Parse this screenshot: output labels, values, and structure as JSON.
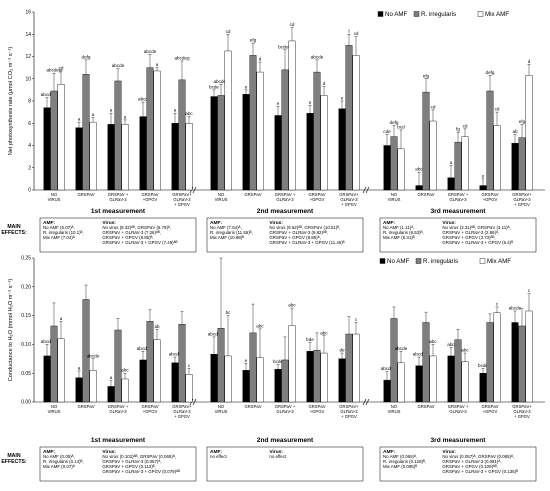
{
  "colors": {
    "no_amf": "#000000",
    "r_irregularis": "#7f7f7f",
    "mix_amf": "#ffffff"
  },
  "legend": [
    "No AMF",
    "R. irregularis",
    "Mix AMF"
  ],
  "categories": [
    "NO\nVIRUS",
    "GRSPaV",
    "GRSPaV +\nGLRaV-3",
    "GRSPaV\n+GPGV",
    "GRSPaV+\nGLRaV-3\n+ GPGV"
  ],
  "measurements": [
    "1st measurement",
    "2nd measurement",
    "3rd measurement"
  ],
  "main_effects_label": "MAIN\nEFFECTS:",
  "chart_data": [
    {
      "type": "bar",
      "ylabel": "Net photosynthesis rate (μmol CO₂ m⁻² s⁻¹)",
      "ylim": [
        0,
        16
      ],
      "yticks": [
        0,
        2,
        4,
        6,
        8,
        10,
        12,
        14,
        16
      ],
      "series": [
        {
          "name": "No AMF",
          "values": [
            [
              7.4,
              5.6,
              5.9,
              6.6,
              6.0
            ],
            [
              8.4,
              8.6,
              6.7,
              6.9,
              7.3
            ],
            [
              4.0,
              0.4,
              1.1,
              0.4,
              4.2
            ]
          ]
        },
        {
          "name": "R. irregularis",
          "values": [
            [
              8.9,
              10.4,
              9.8,
              11.0,
              9.9
            ],
            [
              8.5,
              12.1,
              10.8,
              10.6,
              13.0
            ],
            [
              4.8,
              8.8,
              4.3,
              8.9,
              4.7
            ]
          ]
        },
        {
          "name": "Mix AMF",
          "values": [
            [
              9.5,
              6.1,
              5.9,
              10.7,
              6.0
            ],
            [
              12.5,
              10.6,
              13.4,
              8.5,
              12.1
            ],
            [
              3.7,
              6.2,
              4.8,
              5.8,
              10.3
            ]
          ]
        }
      ],
      "errors": [
        [
          [
            0.9,
            0.5,
            1.0,
            1.3,
            0.9
          ],
          [
            0.6,
            0.4,
            0.8,
            0.7,
            0.7
          ],
          [
            1.0,
            1.2,
            1.1,
            0.6,
            0.8
          ]
        ],
        [
          [
            1.6,
            1.3,
            1.1,
            1.2,
            1.7
          ],
          [
            1.0,
            1.1,
            1.8,
            1.1,
            1.0
          ],
          [
            1.0,
            1.2,
            0.9,
            1.4,
            1.2
          ]
        ],
        [
          [
            1.2,
            0.4,
            0.4,
            0.3,
            0.6
          ],
          [
            1.5,
            0.9,
            1.2,
            0.8,
            1.7
          ],
          [
            1.7,
            1.0,
            0.7,
            1.2,
            1.0
          ]
        ]
      ],
      "labels": [
        [
          [
            "abcde",
            "a",
            "a",
            "abcd",
            "a"
          ],
          [
            "bcde",
            "e",
            "e",
            "e",
            "e"
          ],
          [
            "cde",
            "abc",
            "a",
            "e",
            "ab"
          ]
        ],
        [
          [
            "abcdeg",
            "defg",
            "abcde",
            "abcde",
            "abcdeg"
          ],
          [
            "abcdeg",
            "efg",
            "bcdefg",
            "abcde",
            "f"
          ],
          [
            "defg",
            "efg",
            "fg",
            "defg",
            "efg"
          ]
        ],
        [
          [
            "cd",
            "a",
            "a",
            "a",
            "abc"
          ],
          [
            "cd",
            "d",
            "cd",
            "d",
            "cd"
          ],
          [
            "bcd",
            "cd",
            "cd",
            "cd",
            "d"
          ]
        ]
      ]
    },
    {
      "type": "bar",
      "ylabel": "Conductance to H₂O (mmol H₂O m⁻² s⁻¹)",
      "ylim": [
        0,
        0.25
      ],
      "yticks": [
        0,
        0.05,
        0.1,
        0.15,
        0.2,
        0.25
      ],
      "series": [
        {
          "name": "No AMF",
          "values": [
            [
              0.08,
              0.042,
              0.027,
              0.073,
              0.068
            ],
            [
              0.083,
              0.055,
              0.057,
              0.088,
              0.075
            ],
            [
              0.038,
              0.063,
              0.08,
              0.05,
              0.138
            ]
          ]
        },
        {
          "name": "R. irregularis",
          "values": [
            [
              0.132,
              0.178,
              0.125,
              0.14,
              0.135
            ],
            [
              0.128,
              0.12,
              0.073,
              0.09,
              0.118
            ],
            [
              0.145,
              0.138,
              0.108,
              0.138,
              0.132
            ]
          ]
        },
        {
          "name": "Mix AMF",
          "values": [
            [
              0.11,
              0.055,
              0.04,
              0.108,
              0.048
            ],
            [
              0.08,
              0.077,
              0.133,
              0.085,
              0.118
            ],
            [
              0.068,
              0.08,
              0.07,
              0.155,
              0.158
            ]
          ]
        }
      ],
      "errors": [
        [
          [
            0.02,
            0.012,
            0.01,
            0.015,
            0.01
          ],
          [
            0.03,
            0.012,
            0.008,
            0.015,
            0.01
          ],
          [
            0.015,
            0.015,
            0.015,
            0.008,
            0.02
          ]
        ],
        [
          [
            0.04,
            0.025,
            0.02,
            0.02,
            0.022
          ],
          [
            0.14,
            0.05,
            0.04,
            0.03,
            0.03
          ],
          [
            0.02,
            0.018,
            0.018,
            0.015,
            0.03
          ]
        ],
        [
          [
            0.03,
            0.02,
            0.01,
            0.018,
            0.01
          ],
          [
            0.07,
            0.05,
            0.03,
            0.03,
            0.02
          ],
          [
            0.02,
            0.02,
            0.015,
            0.01,
            0.03
          ]
        ]
      ],
      "labels": [
        [
          [
            "abcde",
            "a",
            "a",
            "abcde",
            "abcde"
          ],
          [
            "abcde",
            "e",
            "bcde",
            "bde",
            "de"
          ],
          [
            "abcde",
            "abcde",
            "abc",
            "bcde",
            "abcde"
          ]
        ],
        [
          [
            "",
            "",
            "",
            "",
            ""
          ],
          [
            "",
            "",
            "",
            "",
            ""
          ],
          [
            "",
            "",
            "",
            "",
            ""
          ]
        ],
        [
          [
            "a",
            "abcde",
            "abc",
            "ab",
            "c"
          ],
          [
            "bc",
            "abc",
            "abc",
            "abc",
            "c"
          ],
          [
            "abcde",
            "abc",
            "abc",
            "c",
            "c"
          ]
        ]
      ]
    }
  ],
  "effects_top": [
    {
      "amf_title": "AMF:",
      "amf": [
        "No AMF (6.07)ᴬ,",
        "R. irregularis (10.1)ᴮ,",
        "Mix AMF (7.04)ᴬ"
      ],
      "virus_title": "Virus:",
      "virus": [
        "No virus (8.32)ᴬᴮ, GRSPaV (6.79)ᴬ,",
        "GRSPaV + GLRaV-3 (7.26)ᴬᴮ,",
        "GRSPaV + GPGV (8.85)ᴮ,",
        "GRSPaV + GLRaV-3 + GPGV (7.49)ᴬᴮ"
      ]
    },
    {
      "amf_title": "AMF:",
      "amf": [
        "No AMF (7.54)ᴬ,",
        "R. irregularis (11.55)ᴮ,",
        "Mix AMF (10.98)ᴮ"
      ],
      "virus_title": "Virus:",
      "virus": [
        "No virus (9.62)ᴬᴮ, GRSPaV (10.51)ᴮ,",
        "GRSPaV + GLRaV-3 (9.82)ᴬᴮ,",
        "GRSPaV + GPGV (8.85)ᴬ,",
        "GRSPaV + GLRaV-3 + GPGV (11.46)ᴮ"
      ]
    },
    {
      "amf_title": "AMF:",
      "amf": [
        "No AMF (1.11)ᴬ,",
        "R. irregularis (6.53)ᴮ,",
        "Mix AMF (5.31)ᴮ"
      ],
      "virus_title": "Virus:",
      "virus": [
        "No virus (3.31)ᴬᴮ, GRSPaV (3.11)ᴬ,",
        "GRSPaV + GLRaV-3 (2.86)ᴬ,",
        "GRSPaV + GPGV (3.73)ᴬᴮ,",
        "GRSPaV + GLRaV-3 + GPGV (6.4)ᴮ"
      ]
    }
  ],
  "effects_bottom": [
    {
      "amf_title": "AMF:",
      "amf": [
        "No AMF (0.05)ᴬ,",
        "R. irregularis (0.14)ᴮ,",
        "Mix AMF (0.07)ᴬ"
      ],
      "virus_title": "Virus:",
      "virus": [
        "No virus (0.102)ᴬᴮ, GRSPaV (0.065)ᴬ,",
        "GRSPaV + GLRaV-3 (0.057)ᴬ,",
        "GRSPaV + GPGV (0.113)ᴮ,",
        "GRSPaV + GLRaV-3 + GPGV (0.079)ᴬᴮ"
      ]
    },
    {
      "amf_title": "AMF:",
      "amf": [
        "no effect"
      ],
      "virus_title": "Virus:",
      "virus": [
        "no effect"
      ]
    },
    {
      "amf_title": "AMF:",
      "amf": [
        "No AMF (0.065)ᴬ,",
        "R. irregularis (0.128)ᴮ,",
        "Mix AMF (0.095)ᴮ"
      ],
      "virus_title": "Virus:",
      "virus": [
        "No virus (0.057)ᴬ, GRSPaV (0.085)ᴬ,",
        "GRSPaV + GLRaV-3 (0.081)ᴬ,",
        "GRSPaV + GPGV (0.109)ᴬᴮ,",
        "GRSPaV + GLRaV-3 + GPGV (0.135)ᴮ"
      ]
    }
  ]
}
